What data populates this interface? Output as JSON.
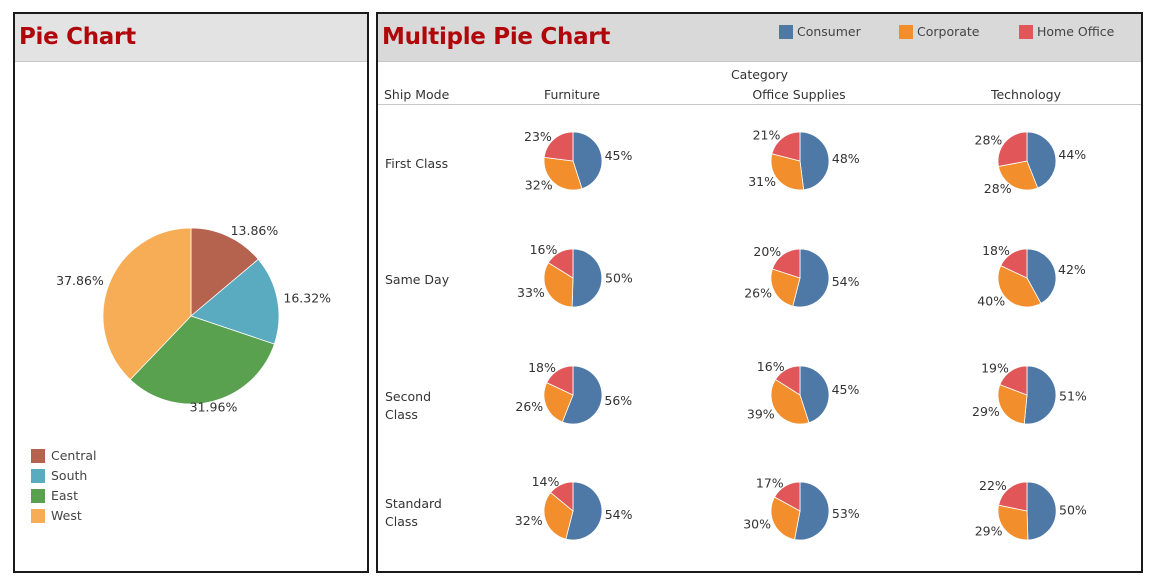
{
  "left": {
    "title": "Pie Chart"
  },
  "right": {
    "title": "Multiple Pie Chart",
    "row_header": "Ship Mode",
    "column_group_header": "Category"
  },
  "colors": {
    "Central": "#b5624f",
    "South": "#5aabbf",
    "East": "#59a14f",
    "West": "#f6ad56",
    "Consumer": "#4e79a7",
    "Corporate": "#f28e2b",
    "Home Office": "#e15759"
  },
  "chart_data": [
    {
      "type": "pie",
      "title": "Pie Chart",
      "labels": [
        "Central",
        "South",
        "East",
        "West"
      ],
      "values": [
        13.86,
        16.32,
        31.96,
        37.86
      ],
      "data_labels": [
        "13.86%",
        "16.32%",
        "31.96%",
        "37.86%"
      ],
      "legend": [
        "Central",
        "South",
        "East",
        "West"
      ]
    },
    {
      "type": "pie",
      "title": "Multiple Pie Chart",
      "legend": [
        "Consumer",
        "Corporate",
        "Home Office"
      ],
      "segments": [
        "Consumer",
        "Corporate",
        "Home Office"
      ],
      "rows": [
        "First Class",
        "Same Day",
        "Second Class",
        "Standard Class"
      ],
      "columns": [
        "Furniture",
        "Office Supplies",
        "Technology"
      ],
      "values": [
        [
          [
            45,
            32,
            23
          ],
          [
            48,
            31,
            21
          ],
          [
            44,
            28,
            28
          ]
        ],
        [
          [
            50,
            33,
            16
          ],
          [
            54,
            26,
            20
          ],
          [
            42,
            40,
            18
          ]
        ],
        [
          [
            56,
            26,
            18
          ],
          [
            45,
            39,
            16
          ],
          [
            51,
            29,
            19
          ]
        ],
        [
          [
            54,
            32,
            14
          ],
          [
            53,
            30,
            17
          ],
          [
            50,
            29,
            22
          ]
        ]
      ],
      "labels": [
        [
          [
            "45%",
            "32%",
            "23%"
          ],
          [
            "48%",
            "31%",
            "21%"
          ],
          [
            "44%",
            "28%",
            "28%"
          ]
        ],
        [
          [
            "50%",
            "33%",
            "16%"
          ],
          [
            "54%",
            "26%",
            "20%"
          ],
          [
            "42%",
            "40%",
            "18%"
          ]
        ],
        [
          [
            "56%",
            "26%",
            "18%"
          ],
          [
            "45%",
            "39%",
            "16%"
          ],
          [
            "51%",
            "29%",
            "19%"
          ]
        ],
        [
          [
            "54%",
            "32%",
            "14%"
          ],
          [
            "53%",
            "30%",
            "17%"
          ],
          [
            "50%",
            "29%",
            "22%"
          ]
        ]
      ]
    }
  ]
}
